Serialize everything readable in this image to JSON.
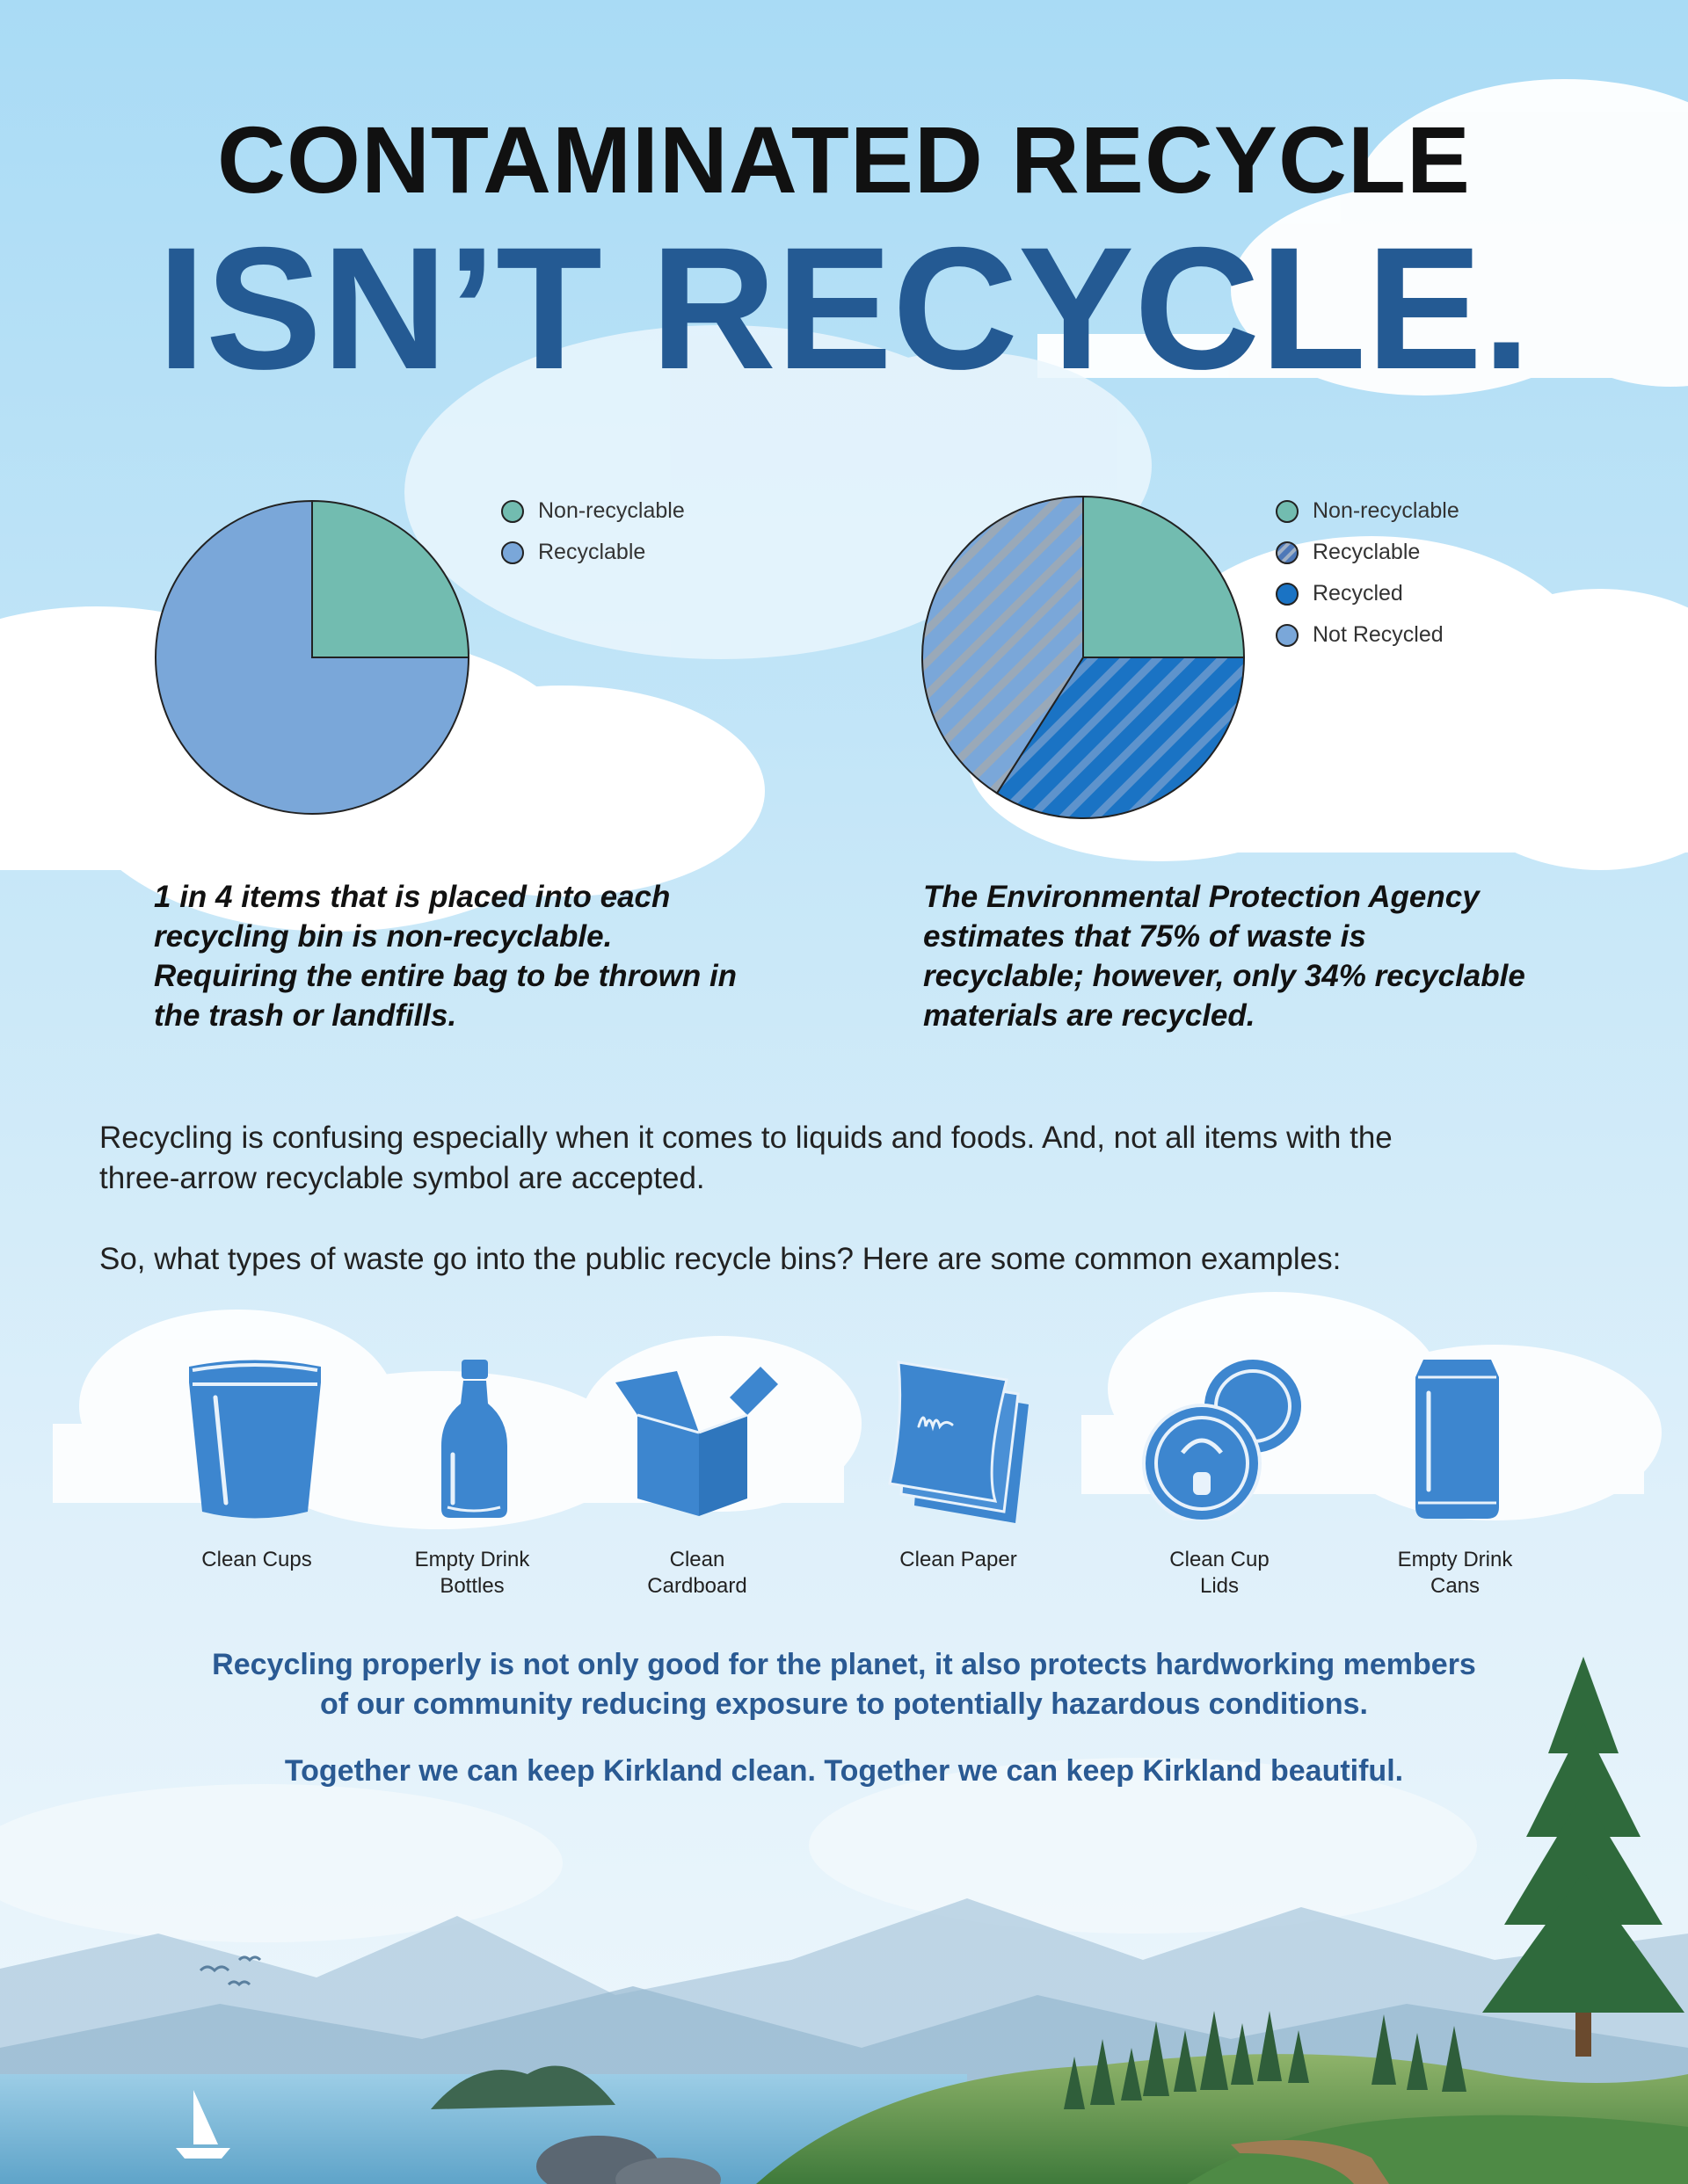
{
  "title": {
    "line1": "CONTAMINATED RECYCLE",
    "line2": "ISN’T RECYCLE."
  },
  "chart_data": [
    {
      "type": "pie",
      "slices": [
        {
          "label": "Non-recyclable",
          "value": 25,
          "color": "#72bcb0"
        },
        {
          "label": "Recyclable",
          "value": 75,
          "color": "#7aa7d9"
        }
      ],
      "legend": [
        "Non-recyclable",
        "Recyclable"
      ],
      "legend_position": "top-right"
    },
    {
      "type": "pie",
      "slices": [
        {
          "label": "Non-recyclable",
          "value": 25,
          "color": "#72bcb0"
        },
        {
          "label": "Recycled",
          "value": 34,
          "color": "#1a73c4",
          "pattern": "stripes"
        },
        {
          "label": "Not Recycled",
          "value": 41,
          "color": "#7aa7d9",
          "pattern": "stripes"
        }
      ],
      "legend": [
        "Non-recyclable",
        "Recyclable",
        "Recycled",
        "Not Recycled"
      ],
      "legend_colors": [
        "#72bcb0",
        "#7aa7d9",
        "#1a73c4",
        "#7aa7d9"
      ],
      "legend_position": "top-right"
    }
  ],
  "captions": {
    "left": [
      "1 in 4 items that is placed into each",
      "recycling bin is non-recyclable.",
      "Requiring the entire bag to be thrown in",
      "the trash or landfills."
    ],
    "right": [
      "The Environmental Protection Agency",
      "estimates that 75% of waste is",
      "recyclable; however, only 34% recyclable",
      "materials are recycled."
    ]
  },
  "body": {
    "p1_line1": "Recycling is confusing especially when it comes to liquids and foods. And, not all items with the",
    "p1_line2": "three-arrow recyclable symbol are accepted.",
    "p2": "So, what types of waste go into the public recycle bins? Here are some common examples:"
  },
  "items": [
    {
      "icon": "cup-icon",
      "label": [
        "Clean Cups"
      ]
    },
    {
      "icon": "bottle-icon",
      "label": [
        "Empty Drink",
        "Bottles"
      ]
    },
    {
      "icon": "cardboard-box-icon",
      "label": [
        "Clean",
        "Cardboard"
      ]
    },
    {
      "icon": "paper-icon",
      "label": [
        "Clean Paper"
      ]
    },
    {
      "icon": "cup-lid-icon",
      "label": [
        "Clean Cup",
        "Lids"
      ]
    },
    {
      "icon": "drink-can-icon",
      "label": [
        "Empty Drink",
        "Cans"
      ]
    }
  ],
  "closing": {
    "line1": "Recycling properly is not only good for the planet, it also protects hardworking members",
    "line2": "of our community reducing exposure to potentially hazardous conditions.",
    "line3": "Together we can keep Kirkland clean. Together we can keep Kirkland beautiful."
  },
  "colors": {
    "icon_blue": "#3d86cf",
    "title_blue": "#245a93",
    "text_blue": "#2a5a93"
  }
}
